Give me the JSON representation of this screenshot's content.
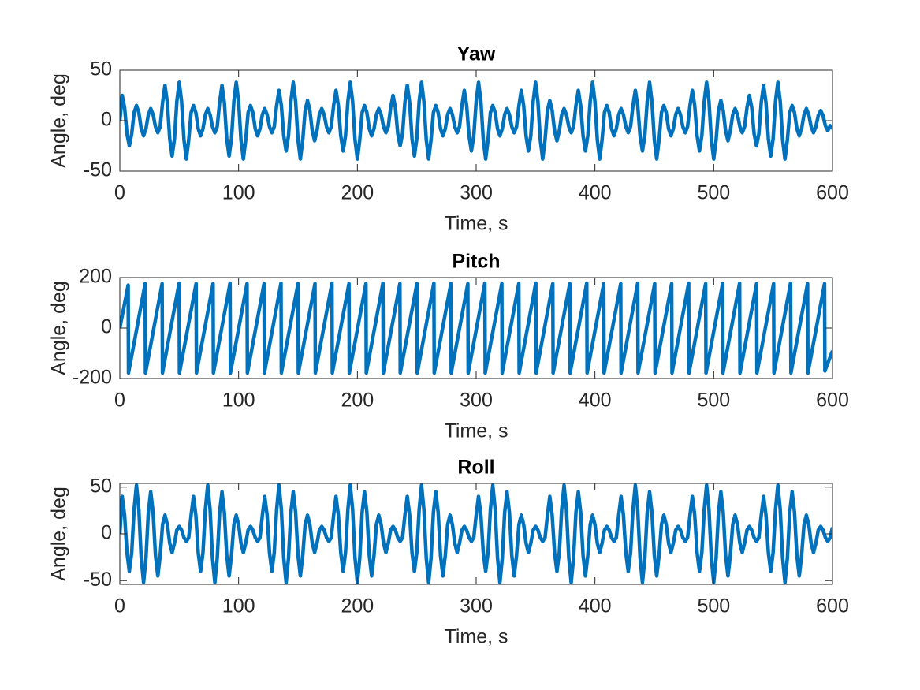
{
  "chart_data": [
    {
      "type": "line",
      "title": "Yaw",
      "xlabel": "Time, s",
      "ylabel": "Angle, deg",
      "color": "#0072bd",
      "xlim": [
        0,
        600
      ],
      "xticks": [
        0,
        100,
        200,
        300,
        400,
        500,
        600
      ],
      "ylim": [
        -50,
        50
      ],
      "yticks": [
        -50,
        0,
        50
      ],
      "x": [
        0,
        2,
        4,
        6,
        8,
        10,
        12,
        14,
        16,
        18,
        20,
        22,
        24,
        26,
        28,
        30,
        32,
        34,
        36,
        38,
        40,
        42,
        44,
        46,
        48,
        50,
        52,
        54,
        56,
        58,
        60,
        62,
        64,
        66,
        68,
        70,
        72,
        74,
        76,
        78,
        80,
        82,
        84,
        86,
        88,
        90,
        92,
        94,
        96,
        98,
        100,
        102,
        104,
        106,
        108,
        110,
        112,
        114,
        116,
        118,
        120,
        122,
        124,
        126,
        128,
        130,
        132,
        134,
        136,
        138,
        140,
        142,
        144,
        146,
        148,
        150,
        152,
        154,
        156,
        158,
        160,
        162,
        164,
        166,
        168,
        170,
        172,
        174,
        176,
        178,
        180,
        182,
        184,
        186,
        188,
        190,
        192,
        194,
        196,
        198,
        200,
        202,
        204,
        206,
        208,
        210,
        212,
        214,
        216,
        218,
        220,
        222,
        224,
        226,
        228,
        230,
        232,
        234,
        236,
        238,
        240,
        242,
        244,
        246,
        248,
        250,
        252,
        254,
        256,
        258,
        260,
        262,
        264,
        266,
        268,
        270,
        272,
        274,
        276,
        278,
        280,
        282,
        284,
        286,
        288,
        290,
        292,
        294,
        296,
        298,
        300,
        302,
        304,
        306,
        308,
        310,
        312,
        314,
        316,
        318,
        320,
        322,
        324,
        326,
        328,
        330,
        332,
        334,
        336,
        338,
        340,
        342,
        344,
        346,
        348,
        350,
        352,
        354,
        356,
        358,
        360,
        362,
        364,
        366,
        368,
        370,
        372,
        374,
        376,
        378,
        380,
        382,
        384,
        386,
        388,
        390,
        392,
        394,
        396,
        398,
        400,
        402,
        404,
        406,
        408,
        410,
        412,
        414,
        416,
        418,
        420,
        422,
        424,
        426,
        428,
        430,
        432,
        434,
        436,
        438,
        440,
        442,
        444,
        446,
        448,
        450,
        452,
        454,
        456,
        458,
        460,
        462,
        464,
        466,
        468,
        470,
        472,
        474,
        476,
        478,
        480,
        482,
        484,
        486,
        488,
        490,
        492,
        494,
        496,
        498,
        500,
        502,
        504,
        506,
        508,
        510,
        512,
        514,
        516,
        518,
        520,
        522,
        524,
        526,
        528,
        530,
        532,
        534,
        536,
        538,
        540,
        542,
        544,
        546,
        548,
        550,
        552,
        554,
        556,
        558,
        560,
        562,
        564,
        566,
        568,
        570,
        572,
        574,
        576,
        578,
        580,
        582,
        584,
        586,
        588,
        590,
        592,
        594,
        596,
        598,
        600
      ],
      "values": [
        0,
        25,
        13,
        -13,
        -25,
        -13,
        8,
        15,
        8,
        -8,
        -15,
        -8,
        6,
        12,
        6,
        -6,
        -12,
        -6,
        18,
        35,
        18,
        -18,
        -35,
        -18,
        19,
        38,
        19,
        -19,
        -38,
        -19,
        8,
        15,
        8,
        -8,
        -15,
        -8,
        6,
        12,
        6,
        -6,
        -12,
        -6,
        18,
        35,
        18,
        -18,
        -35,
        -18,
        19,
        38,
        19,
        -19,
        -38,
        -19,
        8,
        15,
        8,
        -8,
        -15,
        -8,
        6,
        12,
        6,
        -6,
        -12,
        -6,
        15,
        30,
        15,
        -15,
        -30,
        -15,
        19,
        38,
        19,
        -19,
        -38,
        -19,
        10,
        20,
        10,
        -10,
        -20,
        -10,
        6,
        12,
        6,
        -6,
        -12,
        -6,
        15,
        30,
        15,
        -15,
        -30,
        -15,
        19,
        38,
        19,
        -19,
        -38,
        -19,
        8,
        15,
        8,
        -8,
        -15,
        -8,
        6,
        12,
        6,
        -6,
        -12,
        -6,
        13,
        25,
        13,
        -13,
        -25,
        -13,
        18,
        35,
        18,
        -18,
        -35,
        -18,
        19,
        38,
        19,
        -19,
        -38,
        -19,
        8,
        15,
        8,
        -8,
        -15,
        -8,
        6,
        12,
        6,
        -6,
        -12,
        -6,
        15,
        30,
        15,
        -15,
        -30,
        -15,
        19,
        38,
        19,
        -19,
        -38,
        -19,
        8,
        15,
        8,
        -8,
        -15,
        -8,
        6,
        12,
        6,
        -6,
        -12,
        -6,
        15,
        30,
        15,
        -15,
        -30,
        -15,
        19,
        38,
        19,
        -19,
        -38,
        -19,
        10,
        20,
        10,
        -10,
        -20,
        -10,
        6,
        12,
        6,
        -6,
        -12,
        -6,
        15,
        30,
        15,
        -15,
        -30,
        -15,
        19,
        38,
        19,
        -19,
        -38,
        -19,
        8,
        15,
        8,
        -8,
        -15,
        -8,
        6,
        12,
        6,
        -6,
        -12,
        -6,
        15,
        30,
        15,
        -15,
        -30,
        -15,
        19,
        38,
        19,
        -19,
        -38,
        -19,
        8,
        15,
        8,
        -8,
        -15,
        -8,
        6,
        12,
        6,
        -6,
        -12,
        -6,
        15,
        30,
        15,
        -15,
        -30,
        -15,
        19,
        38,
        19,
        -19,
        -38,
        -19,
        10,
        20,
        10,
        -10,
        -20,
        -10,
        6,
        12,
        6,
        -6,
        -12,
        -6,
        13,
        25,
        13,
        -13,
        -25,
        -13,
        18,
        35,
        18,
        -18,
        -35,
        -18,
        19,
        38,
        19,
        -19,
        -38,
        -19,
        8,
        15,
        8,
        -8,
        -15,
        -8,
        6,
        12,
        6,
        -6,
        -12,
        -6,
        5,
        10,
        5,
        -5,
        -10,
        -5,
        -8
      ]
    },
    {
      "type": "line",
      "title": "Pitch",
      "xlabel": "Time, s",
      "ylabel": "Angle, deg",
      "color": "#0072bd",
      "xlim": [
        0,
        600
      ],
      "xticks": [
        0,
        100,
        200,
        300,
        400,
        500,
        600
      ],
      "ylim": [
        -200,
        200
      ],
      "yticks": [
        -200,
        0,
        200
      ],
      "x": [
        0,
        7,
        7.3,
        21.3,
        21.6,
        35.6,
        35.9,
        49.9,
        50.2,
        64.2,
        64.5,
        78.5,
        78.8,
        92.8,
        93.1,
        107.1,
        107.4,
        121.4,
        121.7,
        135.7,
        136,
        150,
        150.3,
        164.3,
        164.6,
        178.6,
        178.9,
        192.9,
        193.2,
        207.2,
        207.5,
        221.5,
        221.8,
        235.8,
        236.1,
        250.1,
        250.4,
        264.4,
        264.7,
        278.7,
        279,
        293,
        293.3,
        307.3,
        307.6,
        321.6,
        321.9,
        335.9,
        336.2,
        350.2,
        350.5,
        364.5,
        364.8,
        378.8,
        379.1,
        393.1,
        393.4,
        407.4,
        407.7,
        421.7,
        422,
        436,
        436.3,
        450.3,
        450.6,
        464.6,
        464.9,
        478.9,
        479.2,
        493.2,
        493.5,
        507.5,
        507.8,
        521.8,
        522.1,
        536.1,
        536.4,
        550.4,
        550.7,
        564.7,
        565,
        579,
        579.3,
        593.3,
        593.6,
        600
      ],
      "values": [
        0,
        170,
        -178,
        176,
        -178,
        176,
        -178,
        178,
        -178,
        176,
        -178,
        176,
        -178,
        178,
        -178,
        176,
        -178,
        176,
        -178,
        178,
        -178,
        176,
        -178,
        176,
        -178,
        178,
        -178,
        176,
        -178,
        176,
        -178,
        178,
        -178,
        176,
        -178,
        176,
        -178,
        178,
        -178,
        176,
        -178,
        176,
        -178,
        178,
        -178,
        176,
        -178,
        176,
        -178,
        178,
        -178,
        176,
        -178,
        176,
        -178,
        178,
        -178,
        176,
        -178,
        176,
        -178,
        178,
        -178,
        176,
        -178,
        176,
        -178,
        178,
        -178,
        176,
        -178,
        176,
        -178,
        178,
        -178,
        176,
        -178,
        176,
        -178,
        178,
        -178,
        176,
        -178,
        176,
        -170,
        -90
      ]
    },
    {
      "type": "line",
      "title": "Roll",
      "xlabel": "Time, s",
      "ylabel": "Angle, deg",
      "color": "#0072bd",
      "xlim": [
        0,
        600
      ],
      "xticks": [
        0,
        100,
        200,
        300,
        400,
        500,
        600
      ],
      "ylim": [
        -54,
        54
      ],
      "yticks": [
        -50,
        0,
        50
      ],
      "x": [
        0,
        2,
        4,
        6,
        8,
        10,
        12,
        14,
        16,
        18,
        20,
        22,
        24,
        26,
        28,
        30,
        32,
        34,
        36,
        38,
        40,
        42,
        44,
        46,
        48,
        50,
        52,
        54,
        56,
        58,
        60,
        62,
        64,
        66,
        68,
        70,
        72,
        74,
        76,
        78,
        80,
        82,
        84,
        86,
        88,
        90,
        92,
        94,
        96,
        98,
        100,
        102,
        104,
        106,
        108,
        110,
        112,
        114,
        116,
        118,
        120,
        122,
        124,
        126,
        128,
        130,
        132,
        134,
        136,
        138,
        140,
        142,
        144,
        146,
        148,
        150,
        152,
        154,
        156,
        158,
        160,
        162,
        164,
        166,
        168,
        170,
        172,
        174,
        176,
        178,
        180,
        182,
        184,
        186,
        188,
        190,
        192,
        194,
        196,
        198,
        200,
        202,
        204,
        206,
        208,
        210,
        212,
        214,
        216,
        218,
        220,
        222,
        224,
        226,
        228,
        230,
        232,
        234,
        236,
        238,
        240,
        242,
        244,
        246,
        248,
        250,
        252,
        254,
        256,
        258,
        260,
        262,
        264,
        266,
        268,
        270,
        272,
        274,
        276,
        278,
        280,
        282,
        284,
        286,
        288,
        290,
        292,
        294,
        296,
        298,
        300,
        302,
        304,
        306,
        308,
        310,
        312,
        314,
        316,
        318,
        320,
        322,
        324,
        326,
        328,
        330,
        332,
        334,
        336,
        338,
        340,
        342,
        344,
        346,
        348,
        350,
        352,
        354,
        356,
        358,
        360,
        362,
        364,
        366,
        368,
        370,
        372,
        374,
        376,
        378,
        380,
        382,
        384,
        386,
        388,
        390,
        392,
        394,
        396,
        398,
        400,
        402,
        404,
        406,
        408,
        410,
        412,
        414,
        416,
        418,
        420,
        422,
        424,
        426,
        428,
        430,
        432,
        434,
        436,
        438,
        440,
        442,
        444,
        446,
        448,
        450,
        452,
        454,
        456,
        458,
        460,
        462,
        464,
        466,
        468,
        470,
        472,
        474,
        476,
        478,
        480,
        482,
        484,
        486,
        488,
        490,
        492,
        494,
        496,
        498,
        500,
        502,
        504,
        506,
        508,
        510,
        512,
        514,
        516,
        518,
        520,
        522,
        524,
        526,
        528,
        530,
        532,
        534,
        536,
        538,
        540,
        542,
        544,
        546,
        548,
        550,
        552,
        554,
        556,
        558,
        560,
        562,
        564,
        566,
        568,
        570,
        572,
        574,
        576,
        578,
        580,
        582,
        584,
        586,
        588,
        590,
        592,
        594,
        596,
        598,
        600
      ],
      "values": [
        0,
        40,
        20,
        -20,
        -40,
        -20,
        26,
        52,
        26,
        -26,
        -52,
        -26,
        23,
        45,
        23,
        -23,
        -45,
        -23,
        10,
        20,
        10,
        -10,
        -20,
        -10,
        4,
        8,
        4,
        -4,
        -8,
        -4,
        20,
        40,
        20,
        -20,
        -40,
        -20,
        26,
        52,
        26,
        -26,
        -52,
        -26,
        23,
        45,
        23,
        -23,
        -45,
        -23,
        10,
        20,
        10,
        -10,
        -20,
        -10,
        4,
        8,
        4,
        -4,
        -8,
        -4,
        20,
        40,
        20,
        -20,
        -40,
        -20,
        26,
        52,
        26,
        -26,
        -52,
        -26,
        23,
        45,
        23,
        -23,
        -45,
        -23,
        10,
        20,
        10,
        -10,
        -20,
        -10,
        4,
        8,
        4,
        -4,
        -8,
        -4,
        20,
        40,
        20,
        -20,
        -40,
        -20,
        26,
        52,
        26,
        -26,
        -52,
        -26,
        23,
        45,
        23,
        -23,
        -45,
        -23,
        10,
        20,
        10,
        -10,
        -20,
        -10,
        4,
        8,
        4,
        -4,
        -8,
        -4,
        20,
        40,
        20,
        -20,
        -40,
        -20,
        26,
        52,
        26,
        -26,
        -52,
        -26,
        23,
        45,
        23,
        -23,
        -45,
        -23,
        10,
        20,
        10,
        -10,
        -20,
        -10,
        4,
        8,
        4,
        -4,
        -8,
        -4,
        20,
        40,
        20,
        -20,
        -40,
        -20,
        26,
        52,
        26,
        -26,
        -52,
        -26,
        23,
        45,
        23,
        -23,
        -45,
        -23,
        10,
        20,
        10,
        -10,
        -20,
        -10,
        4,
        8,
        4,
        -4,
        -8,
        -4,
        20,
        40,
        20,
        -20,
        -40,
        -20,
        26,
        52,
        26,
        -26,
        -52,
        -26,
        23,
        45,
        23,
        -23,
        -45,
        -23,
        10,
        20,
        10,
        -10,
        -20,
        -10,
        4,
        8,
        4,
        -4,
        -8,
        -4,
        20,
        40,
        20,
        -20,
        -40,
        -20,
        26,
        52,
        26,
        -26,
        -52,
        -26,
        23,
        45,
        23,
        -23,
        -45,
        -23,
        10,
        20,
        10,
        -10,
        -20,
        -10,
        4,
        8,
        4,
        -4,
        -8,
        -4,
        20,
        40,
        20,
        -20,
        -40,
        -20,
        26,
        52,
        26,
        -26,
        -52,
        -26,
        23,
        45,
        23,
        -23,
        -45,
        -23,
        10,
        20,
        10,
        -10,
        -20,
        -10,
        4,
        8,
        4,
        -4,
        -8,
        -4,
        20,
        40,
        20,
        -20,
        -40,
        -20,
        26,
        52,
        26,
        -26,
        -52,
        -26,
        23,
        45,
        23,
        -23,
        -45,
        -23,
        10,
        20,
        10,
        -10,
        -20,
        -10,
        4,
        8,
        4,
        -4,
        -8,
        -4,
        7
      ]
    }
  ]
}
